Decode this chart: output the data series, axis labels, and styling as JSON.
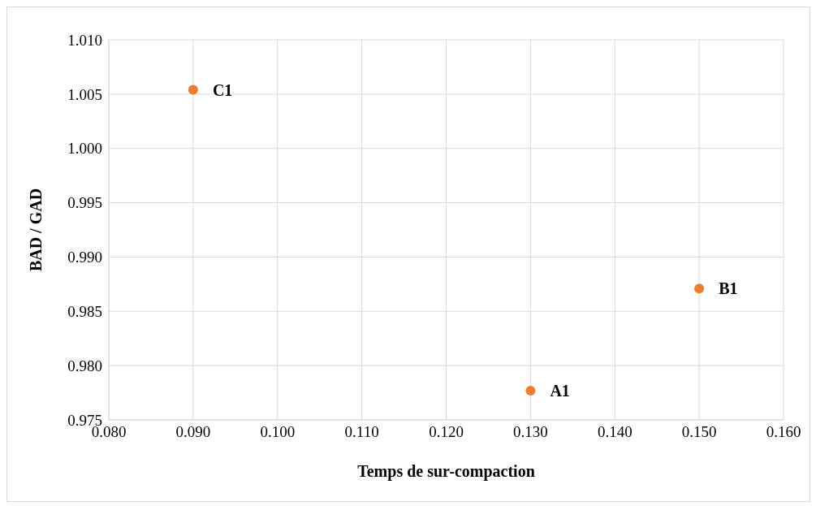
{
  "chart_data": {
    "type": "scatter",
    "xlabel": "Temps de sur-compaction",
    "ylabel": "BAD / GAD",
    "x": [
      0.13,
      0.15,
      0.09
    ],
    "series": [
      {
        "color": "#ed7d31",
        "values": [
          0.9777,
          0.9871,
          1.0054
        ]
      }
    ],
    "xlim": [
      0.08,
      0.16
    ],
    "xticks": [
      {
        "value": 0.08,
        "label": "0.080"
      },
      {
        "value": 0.09,
        "label": "0.090"
      },
      {
        "value": 0.1,
        "label": "0.100"
      },
      {
        "value": 0.11,
        "label": "0.110"
      },
      {
        "value": 0.12,
        "label": "0.120"
      },
      {
        "value": 0.13,
        "label": "0.130"
      },
      {
        "value": 0.14,
        "label": "0.140"
      },
      {
        "value": 0.15,
        "label": "0.150"
      },
      {
        "value": 0.16,
        "label": "0.160"
      }
    ],
    "ylim": [
      0.975,
      1.01
    ],
    "yticks": [
      {
        "value": 0.975,
        "label": "0.975"
      },
      {
        "value": 0.98,
        "label": "0.980"
      },
      {
        "value": 0.985,
        "label": "0.985"
      },
      {
        "value": 0.99,
        "label": "0.990"
      },
      {
        "value": 0.995,
        "label": "0.995"
      },
      {
        "value": 1.0,
        "label": "1.000"
      },
      {
        "value": 1.005,
        "label": "1.005"
      },
      {
        "value": 1.01,
        "label": "1.010"
      }
    ],
    "grid": true,
    "marker": "circle",
    "legend": false,
    "annotations": [
      {
        "text": "A1",
        "x": 0.13,
        "y": 0.9777
      },
      {
        "text": "B1",
        "x": 0.15,
        "y": 0.9871
      },
      {
        "text": "C1",
        "x": 0.09,
        "y": 1.0054
      }
    ]
  }
}
